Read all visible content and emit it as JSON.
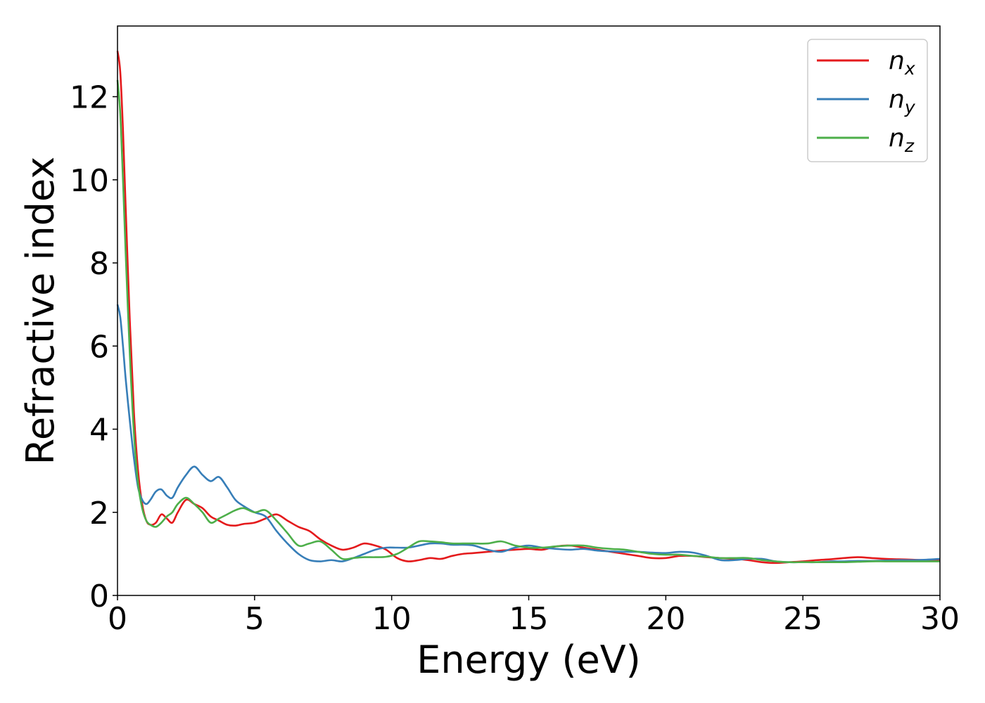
{
  "chart_data": {
    "type": "line",
    "title": "",
    "xlabel": "Energy (eV)",
    "ylabel": "Refractive index",
    "xlim": [
      0,
      30
    ],
    "ylim": [
      0,
      13.7
    ],
    "xticks": [
      0,
      5,
      10,
      15,
      20,
      25,
      30
    ],
    "yticks": [
      0,
      2,
      4,
      6,
      8,
      10,
      12
    ],
    "grid": false,
    "legend_position": "top-right",
    "series": [
      {
        "name": "n_x",
        "legend_base": "n",
        "legend_sub": "x",
        "color": "#e41a1c",
        "x": [
          0,
          0.1,
          0.2,
          0.3,
          0.45,
          0.6,
          0.75,
          0.9,
          1.05,
          1.2,
          1.4,
          1.6,
          1.8,
          2.0,
          2.2,
          2.5,
          2.8,
          3.1,
          3.4,
          3.7,
          4.0,
          4.3,
          4.6,
          5.0,
          5.4,
          5.8,
          6.2,
          6.6,
          7.0,
          7.4,
          7.8,
          8.2,
          8.6,
          9.0,
          9.4,
          9.8,
          10.2,
          10.6,
          11.0,
          11.4,
          11.8,
          12.2,
          12.6,
          13.0,
          13.5,
          14.0,
          14.5,
          15.0,
          15.5,
          16.0,
          16.5,
          17.0,
          17.5,
          18.0,
          18.5,
          19.0,
          19.5,
          20.0,
          20.5,
          21.0,
          21.5,
          22.0,
          22.5,
          23.0,
          23.5,
          24.0,
          24.5,
          25.0,
          25.5,
          26.0,
          26.5,
          27.0,
          27.5,
          28.0,
          28.5,
          29.0,
          29.5,
          30.0
        ],
        "y": [
          13.1,
          12.6,
          11.2,
          9.3,
          6.6,
          4.4,
          3.0,
          2.2,
          1.8,
          1.7,
          1.75,
          1.95,
          1.85,
          1.75,
          2.0,
          2.3,
          2.2,
          2.1,
          1.9,
          1.8,
          1.7,
          1.68,
          1.72,
          1.75,
          1.85,
          1.95,
          1.8,
          1.65,
          1.55,
          1.35,
          1.2,
          1.1,
          1.15,
          1.25,
          1.2,
          1.1,
          0.9,
          0.82,
          0.85,
          0.9,
          0.88,
          0.95,
          1.0,
          1.02,
          1.05,
          1.08,
          1.1,
          1.12,
          1.1,
          1.18,
          1.2,
          1.15,
          1.1,
          1.05,
          1.0,
          0.95,
          0.9,
          0.9,
          0.95,
          0.95,
          0.92,
          0.9,
          0.88,
          0.85,
          0.8,
          0.78,
          0.8,
          0.82,
          0.85,
          0.87,
          0.9,
          0.92,
          0.9,
          0.88,
          0.87,
          0.86,
          0.85,
          0.85
        ]
      },
      {
        "name": "n_y",
        "legend_base": "n",
        "legend_sub": "y",
        "color": "#377eb8",
        "x": [
          0,
          0.1,
          0.2,
          0.3,
          0.45,
          0.6,
          0.75,
          0.9,
          1.05,
          1.2,
          1.4,
          1.6,
          1.8,
          2.0,
          2.2,
          2.5,
          2.8,
          3.1,
          3.4,
          3.7,
          4.0,
          4.3,
          4.6,
          5.0,
          5.4,
          5.8,
          6.2,
          6.6,
          7.0,
          7.4,
          7.8,
          8.2,
          8.6,
          9.0,
          9.4,
          9.8,
          10.2,
          10.6,
          11.0,
          11.4,
          11.8,
          12.2,
          12.6,
          13.0,
          13.5,
          14.0,
          14.5,
          15.0,
          15.5,
          16.0,
          16.5,
          17.0,
          17.5,
          18.0,
          18.5,
          19.0,
          19.5,
          20.0,
          20.5,
          21.0,
          21.5,
          22.0,
          22.5,
          23.0,
          23.5,
          24.0,
          24.5,
          25.0,
          25.5,
          26.0,
          26.5,
          27.0,
          27.5,
          28.0,
          28.5,
          29.0,
          29.5,
          30.0
        ],
        "y": [
          7.0,
          6.7,
          6.0,
          5.2,
          4.2,
          3.3,
          2.6,
          2.3,
          2.2,
          2.3,
          2.5,
          2.55,
          2.4,
          2.35,
          2.6,
          2.9,
          3.1,
          2.9,
          2.75,
          2.85,
          2.6,
          2.3,
          2.15,
          2.0,
          1.9,
          1.55,
          1.25,
          1.0,
          0.85,
          0.82,
          0.85,
          0.82,
          0.9,
          1.0,
          1.1,
          1.15,
          1.15,
          1.15,
          1.2,
          1.25,
          1.25,
          1.22,
          1.22,
          1.2,
          1.1,
          1.05,
          1.15,
          1.2,
          1.15,
          1.12,
          1.1,
          1.12,
          1.08,
          1.06,
          1.05,
          1.05,
          1.03,
          1.02,
          1.05,
          1.03,
          0.95,
          0.85,
          0.85,
          0.88,
          0.88,
          0.82,
          0.8,
          0.8,
          0.8,
          0.82,
          0.82,
          0.83,
          0.83,
          0.84,
          0.85,
          0.85,
          0.86,
          0.88
        ]
      },
      {
        "name": "n_z",
        "legend_base": "n",
        "legend_sub": "z",
        "color": "#4daf4a",
        "x": [
          0,
          0.1,
          0.2,
          0.3,
          0.45,
          0.6,
          0.75,
          0.9,
          1.05,
          1.2,
          1.4,
          1.6,
          1.8,
          2.0,
          2.2,
          2.5,
          2.8,
          3.1,
          3.4,
          3.7,
          4.0,
          4.3,
          4.6,
          5.0,
          5.4,
          5.8,
          6.2,
          6.6,
          7.0,
          7.4,
          7.8,
          8.2,
          8.6,
          9.0,
          9.4,
          9.8,
          10.2,
          10.6,
          11.0,
          11.4,
          11.8,
          12.2,
          12.6,
          13.0,
          13.5,
          14.0,
          14.5,
          15.0,
          15.5,
          16.0,
          16.5,
          17.0,
          17.5,
          18.0,
          18.5,
          19.0,
          19.5,
          20.0,
          20.5,
          21.0,
          21.5,
          22.0,
          22.5,
          23.0,
          23.5,
          24.0,
          24.5,
          25.0,
          25.5,
          26.0,
          26.5,
          27.0,
          27.5,
          28.0,
          28.5,
          29.0,
          29.5,
          30.0
        ],
        "y": [
          12.4,
          11.6,
          10.0,
          8.2,
          5.8,
          3.9,
          2.7,
          2.1,
          1.8,
          1.7,
          1.65,
          1.75,
          1.9,
          2.0,
          2.2,
          2.35,
          2.2,
          2.0,
          1.75,
          1.85,
          1.95,
          2.05,
          2.1,
          2.0,
          2.05,
          1.8,
          1.5,
          1.2,
          1.25,
          1.3,
          1.1,
          0.88,
          0.9,
          0.92,
          0.92,
          0.93,
          1.0,
          1.15,
          1.3,
          1.3,
          1.28,
          1.25,
          1.25,
          1.25,
          1.25,
          1.3,
          1.2,
          1.15,
          1.15,
          1.18,
          1.2,
          1.2,
          1.15,
          1.12,
          1.1,
          1.05,
          1.0,
          0.98,
          0.98,
          0.95,
          0.93,
          0.9,
          0.9,
          0.9,
          0.85,
          0.82,
          0.8,
          0.8,
          0.8,
          0.8,
          0.8,
          0.81,
          0.82,
          0.82,
          0.82,
          0.82,
          0.82,
          0.82
        ]
      }
    ]
  }
}
